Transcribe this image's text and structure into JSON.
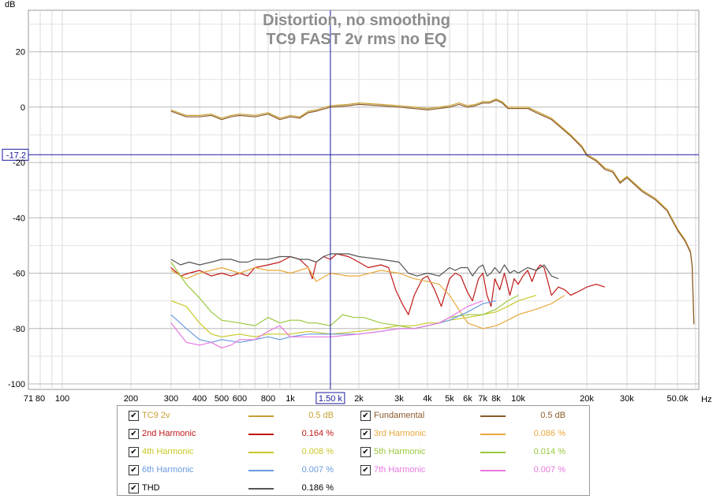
{
  "chart_data": {
    "type": "line",
    "title": "Distortion, no smoothing",
    "subtitle": "TC9 FAST 2v rms no EQ",
    "ylabel": "dB",
    "xlabel": "Hz",
    "x_scale": "log",
    "xlim": [
      71,
      62000
    ],
    "ylim": [
      -102,
      35
    ],
    "x_ticks": [
      {
        "v": 71,
        "label": "71"
      },
      {
        "v": 80,
        "label": "80"
      },
      {
        "v": 100,
        "label": "100"
      },
      {
        "v": 200,
        "label": "200"
      },
      {
        "v": 300,
        "label": "300"
      },
      {
        "v": 400,
        "label": "400"
      },
      {
        "v": 500,
        "label": "500"
      },
      {
        "v": 600,
        "label": "600"
      },
      {
        "v": 800,
        "label": "800"
      },
      {
        "v": 1000,
        "label": "1k"
      },
      {
        "v": 2000,
        "label": "2k"
      },
      {
        "v": 3000,
        "label": "3k"
      },
      {
        "v": 4000,
        "label": "4k"
      },
      {
        "v": 5000,
        "label": "5k"
      },
      {
        "v": 6000,
        "label": "6k"
      },
      {
        "v": 7000,
        "label": "7k"
      },
      {
        "v": 8000,
        "label": "8k"
      },
      {
        "v": 10000,
        "label": "10k"
      },
      {
        "v": 20000,
        "label": "20k"
      },
      {
        "v": 30000,
        "label": "30k"
      },
      {
        "v": 50000,
        "label": "50.0k"
      }
    ],
    "y_ticks": [
      20,
      0,
      -20,
      -40,
      -60,
      -80,
      -100
    ],
    "grid": true,
    "cursor": {
      "x": 1500,
      "y": -17.2,
      "x_label": "1.50 k",
      "y_label": "-17.2"
    },
    "series": [
      {
        "name": "TC9 2v",
        "color": "#c8a032",
        "value": "0.5",
        "unit": "dB",
        "x": [
          300,
          350,
          400,
          450,
          500,
          550,
          600,
          700,
          800,
          900,
          1000,
          1100,
          1200,
          1300,
          1500,
          1800,
          2000,
          2500,
          3000,
          3500,
          4000,
          4500,
          5000,
          5500,
          6000,
          6500,
          7000,
          7500,
          8000,
          8500,
          9000,
          10000,
          11000,
          12000,
          14000,
          17000,
          19000,
          20000,
          22000,
          24000,
          26000,
          28000,
          30000,
          35000,
          40000,
          45000,
          50000,
          54000,
          57000,
          58000,
          59000
        ],
        "y": [
          -1,
          -3,
          -3,
          -2.5,
          -4,
          -3,
          -2.5,
          -3,
          -2,
          -4,
          -3,
          -3.5,
          -1.5,
          -1,
          0.5,
          1,
          1.5,
          1,
          0.5,
          0,
          -0.5,
          0,
          0.5,
          1.5,
          0.5,
          1,
          2,
          2,
          3,
          2,
          0,
          0,
          0,
          -1.5,
          -4,
          -10,
          -14,
          -17,
          -19,
          -22,
          -23,
          -27,
          -25,
          -30,
          -33,
          -37,
          -44,
          -48,
          -52,
          -57,
          -78
        ]
      },
      {
        "name": "Fundamental",
        "color": "#8b5a2b",
        "value": "0.5",
        "unit": "dB",
        "x": [
          300,
          350,
          400,
          450,
          500,
          550,
          600,
          700,
          800,
          900,
          1000,
          1100,
          1200,
          1300,
          1500,
          1800,
          2000,
          2500,
          3000,
          3500,
          4000,
          4500,
          5000,
          5500,
          6000,
          6500,
          7000,
          7500,
          8000,
          8500,
          9000,
          10000,
          11000,
          12000,
          14000,
          17000,
          19000,
          20000,
          22000,
          24000,
          26000,
          28000,
          30000,
          35000,
          40000,
          45000,
          50000,
          54000,
          57000,
          58000,
          59000
        ],
        "y": [
          -1.5,
          -3.5,
          -3.5,
          -3,
          -4.5,
          -3.5,
          -3,
          -3.5,
          -2.5,
          -4.5,
          -3.5,
          -4,
          -2,
          -1.5,
          0,
          0.5,
          1,
          0.5,
          0,
          -0.5,
          -1,
          -0.5,
          0,
          1,
          0,
          0.5,
          1.5,
          1.5,
          2.5,
          1.5,
          -0.5,
          -0.5,
          -0.5,
          -2,
          -4.5,
          -10.5,
          -14.5,
          -17.5,
          -19.5,
          -22.5,
          -23.5,
          -27.5,
          -25.5,
          -30.5,
          -33.5,
          -37.5,
          -44.5,
          -48.5,
          -52.5,
          -57.5,
          -78.5
        ]
      },
      {
        "name": "2nd Harmonic",
        "color": "#c01818",
        "value": "0.164",
        "unit": "%",
        "x": [
          300,
          330,
          360,
          400,
          450,
          500,
          550,
          600,
          650,
          700,
          800,
          900,
          1000,
          1100,
          1200,
          1250,
          1300,
          1400,
          1500,
          1600,
          1800,
          2000,
          2200,
          2500,
          2700,
          2900,
          3100,
          3300,
          3500,
          3800,
          4000,
          4300,
          4600,
          5000,
          5300,
          5600,
          6000,
          6300,
          6700,
          7000,
          7300,
          7600,
          7900,
          8300,
          8700,
          9200,
          9600,
          10000,
          10500,
          11000,
          11500,
          12000,
          12500,
          13000,
          14000,
          15000,
          16000,
          17000,
          18000,
          19000,
          20000,
          22000,
          24000
        ],
        "y": [
          -58,
          -61,
          -60,
          -59,
          -61,
          -60,
          -61,
          -60,
          -61,
          -58,
          -57,
          -56,
          -54,
          -55,
          -58,
          -62,
          -56,
          -54,
          -55,
          -53,
          -54,
          -56,
          -58,
          -57,
          -58,
          -66,
          -71,
          -75,
          -68,
          -62,
          -61,
          -66,
          -72,
          -62,
          -60,
          -61,
          -67,
          -70,
          -62,
          -60,
          -68,
          -72,
          -62,
          -66,
          -60,
          -68,
          -62,
          -64,
          -61,
          -59,
          -63,
          -59,
          -57,
          -58,
          -68,
          -65,
          -66,
          -68,
          -67,
          -66,
          -65,
          -64,
          -65
        ]
      },
      {
        "name": "3rd Harmonic",
        "color": "#e8a83c",
        "value": "0.086",
        "unit": "%",
        "x": [
          300,
          350,
          400,
          450,
          500,
          600,
          700,
          800,
          900,
          1000,
          1100,
          1200,
          1300,
          1500,
          1800,
          2000,
          2500,
          3000,
          3500,
          4000,
          4500,
          5000,
          6000,
          7000,
          8000,
          9000,
          10000,
          12000,
          14000,
          16000
        ],
        "y": [
          -59,
          -62,
          -60,
          -59,
          -58,
          -60,
          -58,
          -59,
          -59,
          -60,
          -59,
          -58,
          -63,
          -60,
          -61,
          -61,
          -59,
          -60,
          -62,
          -63,
          -64,
          -68,
          -78,
          -80,
          -79,
          -77,
          -75,
          -73,
          -71,
          -68
        ]
      },
      {
        "name": "4th Harmonic",
        "color": "#c8c828",
        "value": "0.008",
        "unit": "%",
        "x": [
          300,
          350,
          400,
          450,
          500,
          600,
          700,
          800,
          900,
          1000,
          1200,
          1500,
          2000,
          2500,
          3000,
          3500,
          4000,
          4500,
          5000,
          6000,
          7000,
          8000,
          9000,
          10000,
          12000
        ],
        "y": [
          -70,
          -72,
          -78,
          -82,
          -83,
          -82,
          -83,
          -82,
          -82,
          -82,
          -81,
          -82,
          -81,
          -80,
          -79,
          -79,
          -78,
          -78,
          -77,
          -76,
          -75,
          -74,
          -72,
          -70,
          -68
        ]
      },
      {
        "name": "5th Harmonic",
        "color": "#9ac83c",
        "value": "0.014",
        "unit": "%",
        "x": [
          300,
          350,
          400,
          450,
          500,
          600,
          700,
          800,
          900,
          1000,
          1100,
          1200,
          1300,
          1500,
          1700,
          1900,
          2100,
          2500,
          3000,
          3500,
          4000,
          4500,
          5000,
          6000,
          7000,
          8000,
          9000,
          10000
        ],
        "y": [
          -56,
          -64,
          -69,
          -74,
          -77,
          -78,
          -79,
          -76,
          -78,
          -77,
          -77,
          -78,
          -78,
          -79,
          -75,
          -76,
          -76,
          -78,
          -79,
          -80,
          -79,
          -78,
          -76,
          -75,
          -75,
          -73,
          -70,
          -68
        ]
      },
      {
        "name": "6th Harmonic",
        "color": "#6a9ae0",
        "value": "0.007",
        "unit": "%",
        "x": [
          300,
          350,
          400,
          450,
          500,
          600,
          700,
          800,
          900,
          1000,
          1200,
          1500,
          2000,
          2500,
          3000,
          3500,
          4000,
          4500,
          5000,
          6000,
          7000,
          8000
        ],
        "y": [
          -75,
          -80,
          -84,
          -85,
          -84,
          -85,
          -84,
          -83,
          -84,
          -83,
          -82,
          -82,
          -82,
          -81,
          -80,
          -80,
          -79,
          -78,
          -77,
          -74,
          -71,
          -70
        ]
      },
      {
        "name": "7th Harmonic",
        "color": "#e878e0",
        "value": "0.007",
        "unit": "%",
        "x": [
          300,
          350,
          400,
          450,
          500,
          550,
          600,
          700,
          800,
          900,
          1000,
          1200,
          1500,
          2000,
          2500,
          3000,
          3500,
          4000,
          4500,
          5000,
          6000,
          7000
        ],
        "y": [
          -78,
          -85,
          -86,
          -85,
          -87,
          -86,
          -84,
          -84,
          -81,
          -79,
          -83,
          -83,
          -83,
          -82,
          -81,
          -80,
          -80,
          -79,
          -78,
          -76,
          -72,
          -70
        ]
      },
      {
        "name": "THD",
        "color": "#555555",
        "value": "0.186",
        "unit": "%",
        "x": [
          300,
          330,
          360,
          400,
          450,
          500,
          550,
          600,
          650,
          700,
          800,
          900,
          1000,
          1100,
          1200,
          1300,
          1400,
          1500,
          1600,
          1800,
          2000,
          2500,
          3000,
          3300,
          3600,
          4000,
          4500,
          5000,
          5300,
          5600,
          6000,
          6300,
          6700,
          7000,
          7300,
          7600,
          7900,
          8300,
          8700,
          9200,
          9600,
          10000,
          11000,
          12000,
          13000,
          14000,
          15000
        ],
        "y": [
          -55,
          -57,
          -56,
          -57,
          -56,
          -55,
          -55,
          -56,
          -56,
          -55,
          -55,
          -54,
          -54,
          -55,
          -55,
          -56,
          -54,
          -53,
          -53,
          -53,
          -54,
          -55,
          -56,
          -60,
          -61,
          -60,
          -61,
          -58,
          -59,
          -58,
          -58,
          -61,
          -58,
          -57,
          -61,
          -60,
          -58,
          -60,
          -57,
          -60,
          -59,
          -60,
          -58,
          -59,
          -57,
          -61,
          -62
        ]
      }
    ]
  }
}
